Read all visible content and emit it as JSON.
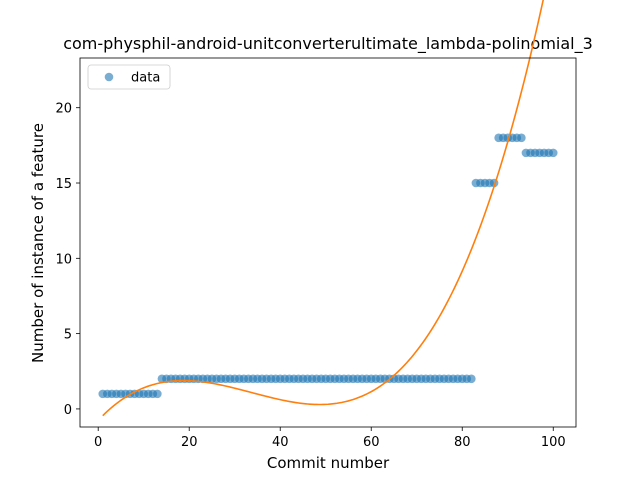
{
  "chart_data": {
    "type": "scatter",
    "title": "com-physphil-android-unitconverterultimate_lambda-polinomial_3",
    "xlabel": "Commit number",
    "ylabel": "Number of instance of a feature",
    "xlim": [
      -4.0,
      105.0
    ],
    "ylim": [
      -1.2,
      23.3
    ],
    "xticks": [
      0,
      20,
      40,
      60,
      80,
      100
    ],
    "yticks": [
      0,
      5,
      10,
      15,
      20
    ],
    "grid": false,
    "legend": {
      "placement": "top-left",
      "entries": [
        "data"
      ]
    },
    "series": [
      {
        "name": "data",
        "kind": "scatter",
        "color": "#1f77b4",
        "segments": [
          {
            "x_from": 1,
            "x_to": 13,
            "y": 1
          },
          {
            "x_from": 14,
            "x_to": 82,
            "y": 2
          },
          {
            "x_from": 83,
            "x_to": 87,
            "y": 15
          },
          {
            "x_from": 88,
            "x_to": 93,
            "y": 18
          },
          {
            "x_from": 94,
            "x_to": 100,
            "y": 17
          }
        ]
      },
      {
        "name": "",
        "kind": "polynomial_fit",
        "color": "#ff7f0e",
        "x_range": [
          1,
          100
        ],
        "coefficients": [
          -0.7576,
          0.3237,
          -0.01197,
          0.0001184
        ]
      }
    ]
  }
}
